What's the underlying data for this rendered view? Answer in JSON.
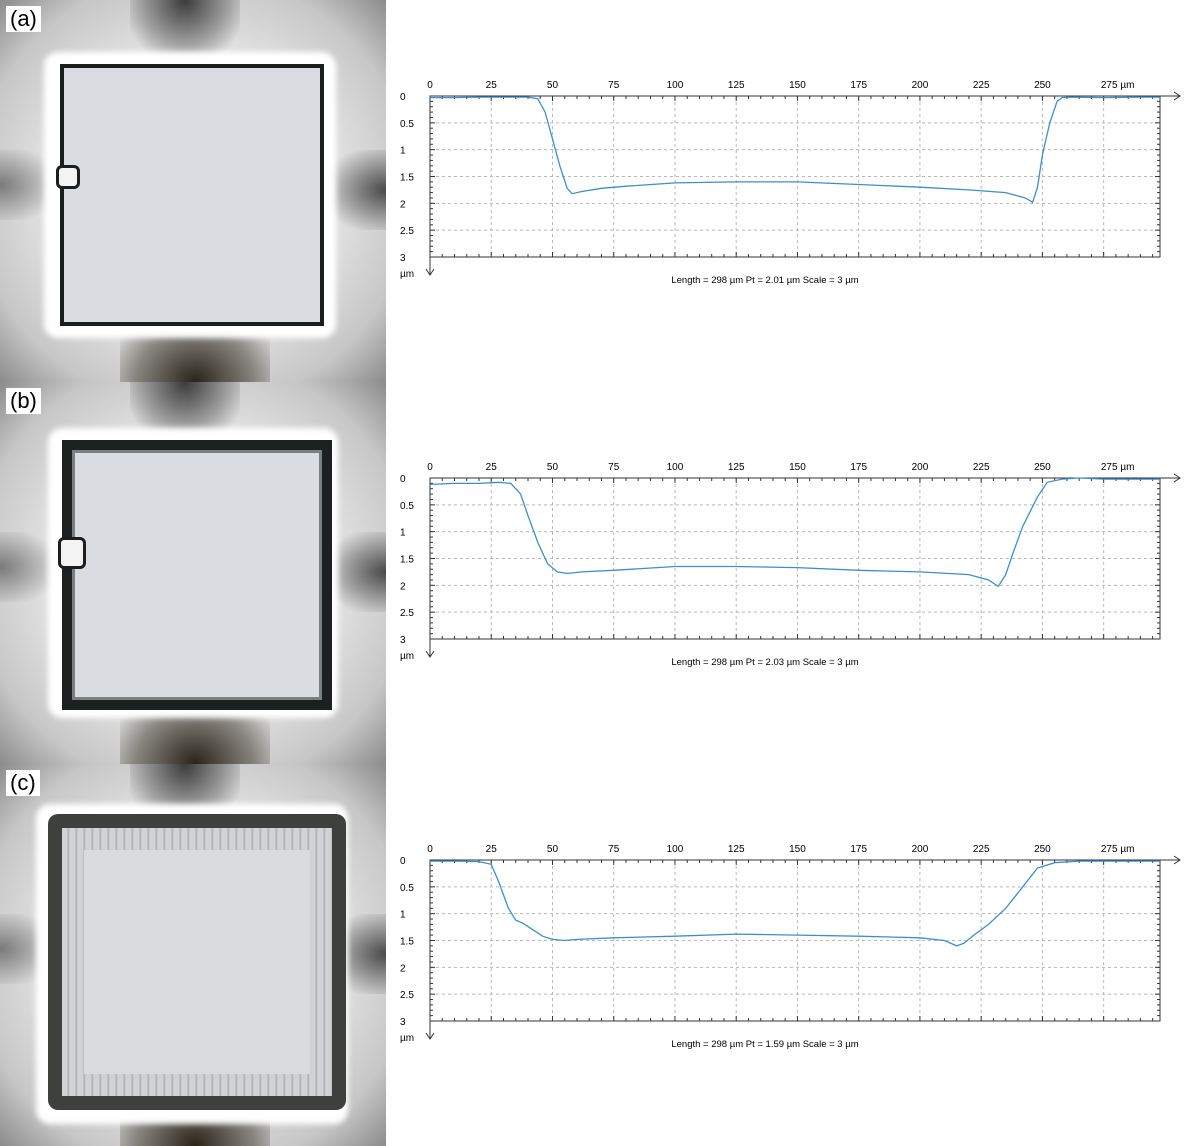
{
  "panels": [
    {
      "label": "(a)",
      "chart_data": {
        "type": "line",
        "x_unit": "µm",
        "y_unit": "µm",
        "xlim": [
          0,
          298
        ],
        "ylim": [
          0,
          3
        ],
        "y_inverted": true,
        "xticks": [
          0,
          25,
          50,
          75,
          100,
          125,
          150,
          175,
          200,
          225,
          250,
          "275 µm"
        ],
        "yticks": [
          "0",
          "0.5",
          "1",
          "1.5",
          "2",
          "2.5",
          "3"
        ],
        "grid": true,
        "caption": "Length = 298 µm  Pt = 2.01 µm  Scale = 3 µm",
        "series": [
          {
            "color": "#3c8fcb",
            "x": [
              0,
              10,
              20,
              30,
              40,
              44,
              47,
              50,
              53,
              56,
              58,
              62,
              70,
              80,
              100,
              125,
              150,
              175,
              200,
              220,
              235,
              243,
              246,
              248,
              250,
              253,
              256,
              258,
              262,
              275,
              290,
              298
            ],
            "y": [
              0.03,
              0.03,
              0.02,
              0.02,
              0.02,
              0.05,
              0.3,
              0.8,
              1.3,
              1.72,
              1.82,
              1.78,
              1.72,
              1.68,
              1.62,
              1.6,
              1.6,
              1.65,
              1.7,
              1.75,
              1.8,
              1.9,
              1.98,
              1.7,
              1.1,
              0.5,
              0.1,
              0.03,
              0.02,
              0.03,
              0.02,
              0.02
            ]
          }
        ]
      }
    },
    {
      "label": "(b)",
      "chart_data": {
        "type": "line",
        "x_unit": "µm",
        "y_unit": "µm",
        "xlim": [
          0,
          298
        ],
        "ylim": [
          0,
          3
        ],
        "y_inverted": true,
        "xticks": [
          0,
          25,
          50,
          75,
          100,
          125,
          150,
          175,
          200,
          225,
          250,
          "275 µm"
        ],
        "yticks": [
          "0",
          "0.5",
          "1",
          "1.5",
          "2",
          "2.5",
          "3"
        ],
        "grid": true,
        "caption": "Length = 298 µm  Pt = 2.03 µm  Scale = 3 µm",
        "series": [
          {
            "color": "#3c8fcb",
            "x": [
              0,
              10,
              20,
              28,
              33,
              37,
              40,
              44,
              48,
              52,
              56,
              62,
              75,
              100,
              125,
              150,
              175,
              200,
              220,
              228,
              232,
              235,
              238,
              242,
              248,
              252,
              258,
              265,
              275,
              290,
              298
            ],
            "y": [
              0.12,
              0.1,
              0.1,
              0.08,
              0.1,
              0.3,
              0.7,
              1.2,
              1.6,
              1.75,
              1.78,
              1.75,
              1.72,
              1.65,
              1.65,
              1.67,
              1.72,
              1.75,
              1.8,
              1.9,
              2.02,
              1.8,
              1.4,
              0.9,
              0.35,
              0.08,
              0.02,
              0.0,
              0.02,
              0.02,
              0.02
            ]
          }
        ]
      }
    },
    {
      "label": "(c)",
      "chart_data": {
        "type": "line",
        "x_unit": "µm",
        "y_unit": "µm",
        "xlim": [
          0,
          298
        ],
        "ylim": [
          0,
          3
        ],
        "y_inverted": true,
        "xticks": [
          0,
          25,
          50,
          75,
          100,
          125,
          150,
          175,
          200,
          225,
          250,
          "275 µm"
        ],
        "yticks": [
          "0",
          "0.5",
          "1",
          "1.5",
          "2",
          "2.5",
          "3"
        ],
        "grid": true,
        "caption": "Length = 298 µm  Pt = 1.59 µm  Scale = 3 µm",
        "series": [
          {
            "color": "#3c8fcb",
            "x": [
              0,
              10,
              20,
              25,
              28,
              32,
              35,
              38,
              42,
              46,
              50,
              55,
              60,
              75,
              100,
              125,
              150,
              175,
              200,
              210,
              215,
              218,
              222,
              228,
              235,
              242,
              248,
              255,
              265,
              280,
              298
            ],
            "y": [
              0.02,
              0.02,
              0.03,
              0.08,
              0.4,
              0.9,
              1.12,
              1.18,
              1.3,
              1.42,
              1.48,
              1.5,
              1.48,
              1.45,
              1.42,
              1.38,
              1.4,
              1.42,
              1.45,
              1.5,
              1.6,
              1.55,
              1.4,
              1.2,
              0.9,
              0.5,
              0.15,
              0.05,
              0.02,
              0.02,
              0.02
            ]
          }
        ]
      }
    }
  ]
}
